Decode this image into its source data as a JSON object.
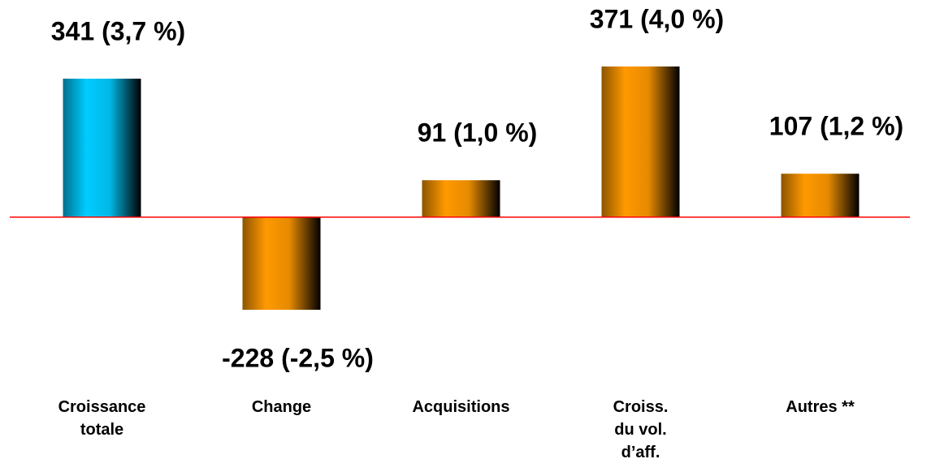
{
  "chart_data": {
    "type": "bar",
    "categories": [
      "Croissance\ntotale",
      "Change",
      "Acquisitions",
      "Croiss.\ndu vol.\nd’aff.",
      "Autres **"
    ],
    "values": [
      341,
      -228,
      91,
      371,
      107
    ],
    "value_labels": [
      "341 (3,7 %)",
      "-228 (-2,5 %)",
      "91 (1,0 %)",
      "371 (4,0 %)",
      "107 (1,2 %)"
    ],
    "colors": [
      "#00ccff",
      "#ff9900",
      "#ff9900",
      "#ff9900",
      "#ff9900"
    ],
    "baseline_color": "#ff0000"
  }
}
